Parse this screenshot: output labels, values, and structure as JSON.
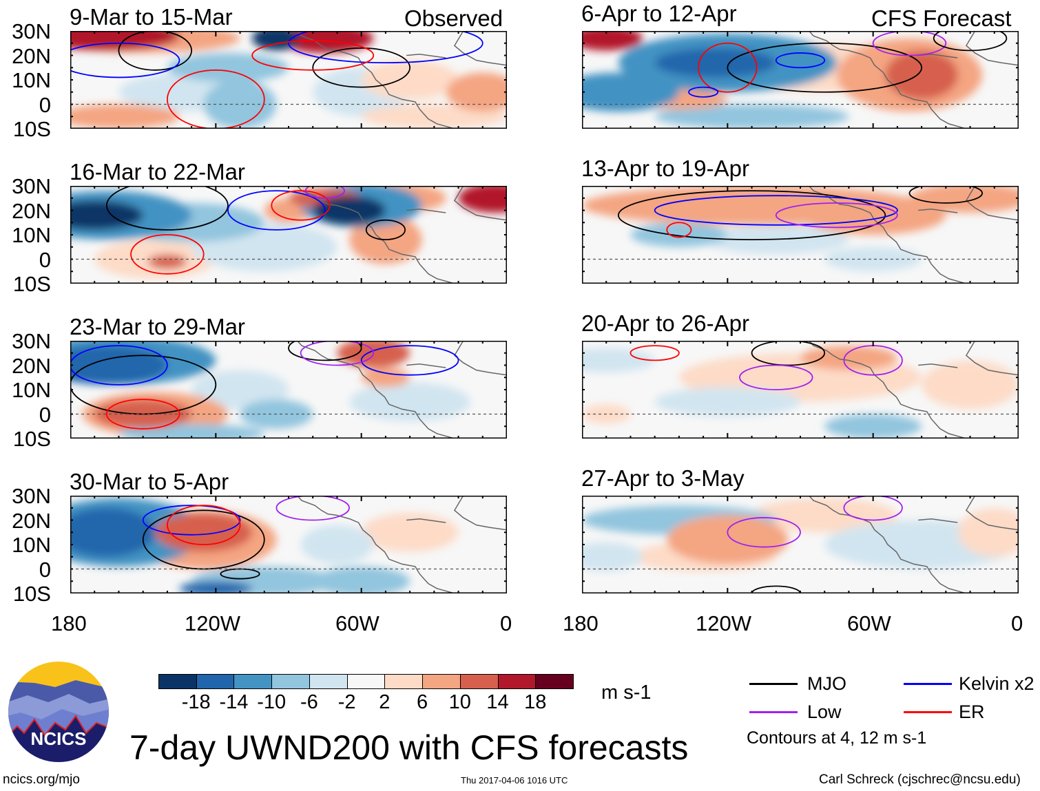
{
  "title": "7-day UWND200 with CFS forecasts",
  "observed_label": "Observed",
  "forecast_label": "CFS Forecast",
  "panels": [
    {
      "title": "9-Mar to 15-Mar"
    },
    {
      "title": "16-Mar to 22-Mar"
    },
    {
      "title": "23-Mar to 29-Mar"
    },
    {
      "title": "30-Mar to 5-Apr"
    },
    {
      "title": "6-Apr to 12-Apr"
    },
    {
      "title": "13-Apr to 19-Apr"
    },
    {
      "title": "20-Apr to 26-Apr"
    },
    {
      "title": "27-Apr to 3-May"
    }
  ],
  "lat_ticks": [
    "30N",
    "20N",
    "10N",
    "0",
    "10S"
  ],
  "lon_ticks": [
    "180",
    "120W",
    "60W",
    "0"
  ],
  "colorbar": {
    "labels": [
      "-18",
      "-14",
      "-10",
      "-6",
      "-2",
      "2",
      "6",
      "10",
      "14",
      "18"
    ],
    "colors": [
      "#0b3466",
      "#2166ac",
      "#4393c3",
      "#92c5de",
      "#d1e5f0",
      "#f7f7f7",
      "#fddbc7",
      "#f4a582",
      "#d6604d",
      "#b2182b",
      "#67001f"
    ],
    "units": "m s-1"
  },
  "legend": {
    "items": [
      {
        "label": "MJO",
        "color": "#000000"
      },
      {
        "label": "Kelvin x2",
        "color": "#0000ff"
      },
      {
        "label": "Low",
        "color": "#a020f0"
      },
      {
        "label": "ER",
        "color": "#ff0000"
      }
    ],
    "note": "Contours at 4, 12 m s-1"
  },
  "logo_text": "NCICS",
  "footer": {
    "url": "ncics.org/mjo",
    "timestamp": "Thu 2017-04-06 1016 UTC",
    "author": "Carl Schreck (cjschrec@ncsu.edu)"
  }
}
